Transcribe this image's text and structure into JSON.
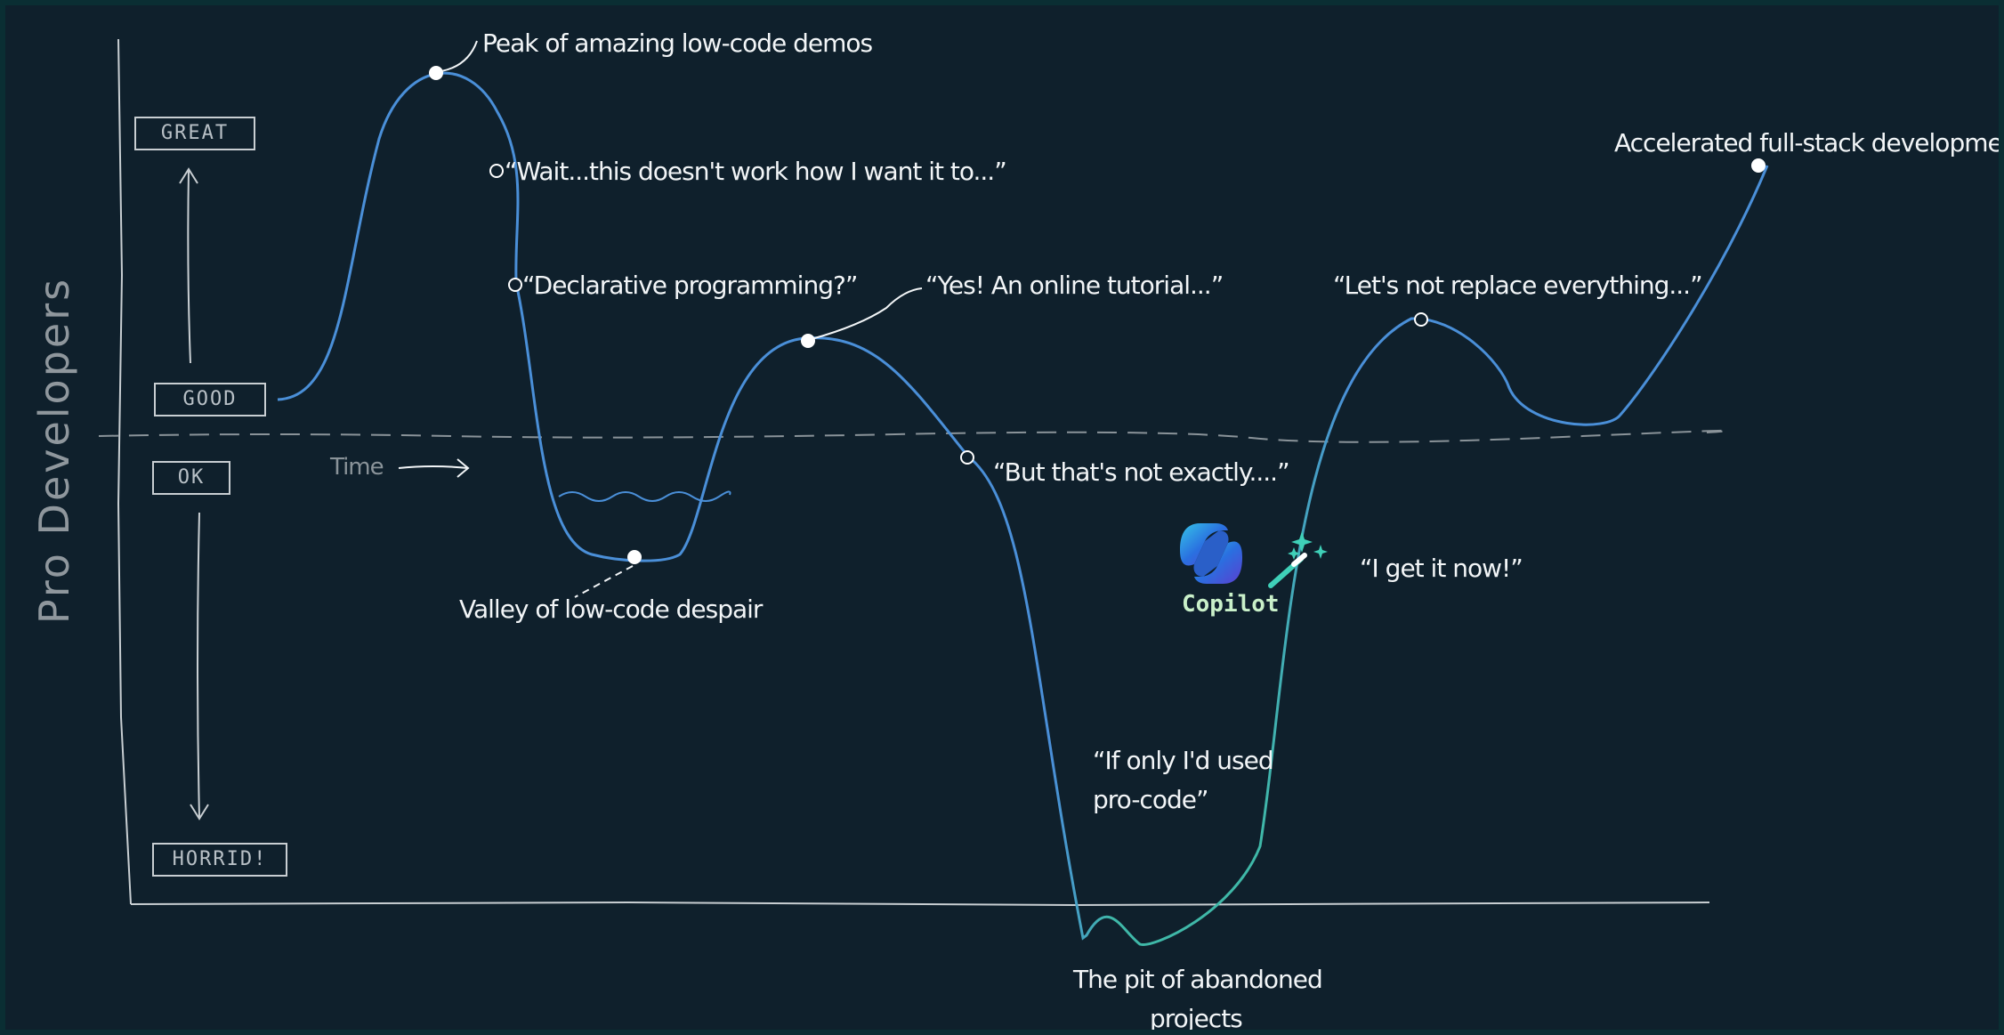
{
  "y_axis_title": "Pro Developers",
  "levels": {
    "great": "GREAT",
    "good": "GOOD",
    "ok": "OK",
    "horrid": "HORRID!"
  },
  "time_label": "Time",
  "annotations": {
    "peak": "Peak of amazing low-code demos",
    "wait": "“Wait...this doesn't work how I want it to...”",
    "declarative": "“Declarative programming?”",
    "tutorial": "“Yes! An online tutorial...”",
    "not_exactly": "“But that's not exactly....”",
    "valley": "Valley of low-code despair",
    "if_only_line1": "“If only I'd used",
    "if_only_line2": "pro-code”",
    "pit_line1": "The pit of abandoned",
    "pit_line2": "projects",
    "get_it": "“I get it now!”",
    "not_replace": "“Let's not replace everything...”",
    "accelerated": "Accelerated full-stack development"
  },
  "copilot": {
    "label": "Copilot",
    "logo_icon": "copilot-logo-icon",
    "wand_icon": "magic-wand-icon"
  },
  "colors": {
    "background": "#0f202c",
    "frame": "#0a2e33",
    "curve_blue": "#4a8fd8",
    "curve_teal": "#3fb8a8",
    "axis": "#c8ced2",
    "dashed_baseline": "#8a9399",
    "text": "#f2f5f7"
  }
}
